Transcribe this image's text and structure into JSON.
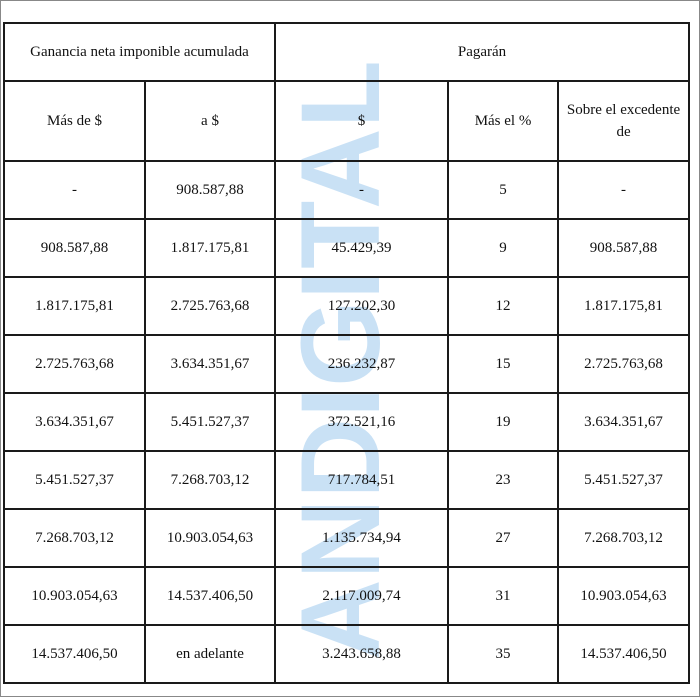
{
  "watermark": {
    "text": "ANDIGITAL",
    "color": "#9cc8ec"
  },
  "table": {
    "group_headers": {
      "left": "Ganancia neta imponible acumulada",
      "right": "Pagarán"
    },
    "column_headers": {
      "mas_de": "Más de $",
      "a": "a $",
      "pesos": "$",
      "mas_el_pct": "Más el %",
      "sobre_excedente": "Sobre el excedente de"
    },
    "rows": [
      {
        "mas_de": "-",
        "a": "908.587,88",
        "pesos": "-",
        "pct": "5",
        "excedente": "-"
      },
      {
        "mas_de": "908.587,88",
        "a": "1.817.175,81",
        "pesos": "45.429,39",
        "pct": "9",
        "excedente": "908.587,88"
      },
      {
        "mas_de": "1.817.175,81",
        "a": "2.725.763,68",
        "pesos": "127.202,30",
        "pct": "12",
        "excedente": "1.817.175,81"
      },
      {
        "mas_de": "2.725.763,68",
        "a": "3.634.351,67",
        "pesos": "236.232,87",
        "pct": "15",
        "excedente": "2.725.763,68"
      },
      {
        "mas_de": "3.634.351,67",
        "a": "5.451.527,37",
        "pesos": "372.521,16",
        "pct": "19",
        "excedente": "3.634.351,67"
      },
      {
        "mas_de": "5.451.527,37",
        "a": "7.268.703,12",
        "pesos": "717.784,51",
        "pct": "23",
        "excedente": "5.451.527,37"
      },
      {
        "mas_de": "7.268.703,12",
        "a": "10.903.054,63",
        "pesos": "1.135.734,94",
        "pct": "27",
        "excedente": "7.268.703,12"
      },
      {
        "mas_de": "10.903.054,63",
        "a": "14.537.406,50",
        "pesos": "2.117.009,74",
        "pct": "31",
        "excedente": "10.903.054,63"
      },
      {
        "mas_de": "14.537.406,50",
        "a": "en adelante",
        "pesos": "3.243.658,88",
        "pct": "35",
        "excedente": "14.537.406,50"
      }
    ]
  }
}
